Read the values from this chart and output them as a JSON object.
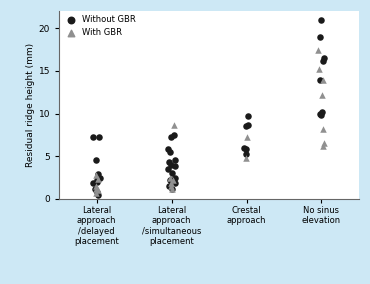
{
  "categories": [
    "Lateral\napproach\n/delayed\nplacement",
    "Lateral\napproach\n/simultaneous\nplacement",
    "Crestal\napproach",
    "No sinus\nelevation"
  ],
  "without_gbr": [
    [
      7.2,
      7.3,
      4.5,
      2.9,
      2.5,
      2.2,
      2.0,
      1.8,
      1.2,
      0.8,
      0.5
    ],
    [
      7.5,
      7.3,
      5.8,
      5.5,
      4.5,
      4.3,
      4.0,
      3.8,
      3.5,
      3.0,
      2.5,
      2.2,
      2.0,
      1.8,
      1.5,
      1.2
    ],
    [
      9.7,
      8.7,
      8.5,
      6.0,
      5.8,
      5.2
    ],
    [
      21.0,
      19.0,
      16.5,
      16.2,
      14.0,
      10.2,
      10.0,
      9.8
    ]
  ],
  "with_gbr": [
    [
      2.8,
      2.3,
      1.5,
      1.2,
      1.0,
      0.7
    ],
    [
      8.7,
      2.5,
      2.2,
      1.8,
      1.5,
      1.2
    ],
    [
      7.2,
      4.8
    ],
    [
      17.5,
      15.2,
      14.0,
      12.2,
      8.2,
      6.5,
      6.2
    ]
  ],
  "circle_color": "#1a1a1a",
  "triangle_color": "#909090",
  "background_color": "#cde8f5",
  "plot_bg_color": "#ffffff",
  "ylabel": "Residual ridge height (mm)",
  "ylim": [
    0,
    22
  ],
  "yticks": [
    0,
    5,
    10,
    15,
    20
  ],
  "legend_circle_label": "Without GBR",
  "legend_triangle_label": "With GBR",
  "marker_size": 22,
  "figsize": [
    3.7,
    2.84
  ],
  "dpi": 100
}
